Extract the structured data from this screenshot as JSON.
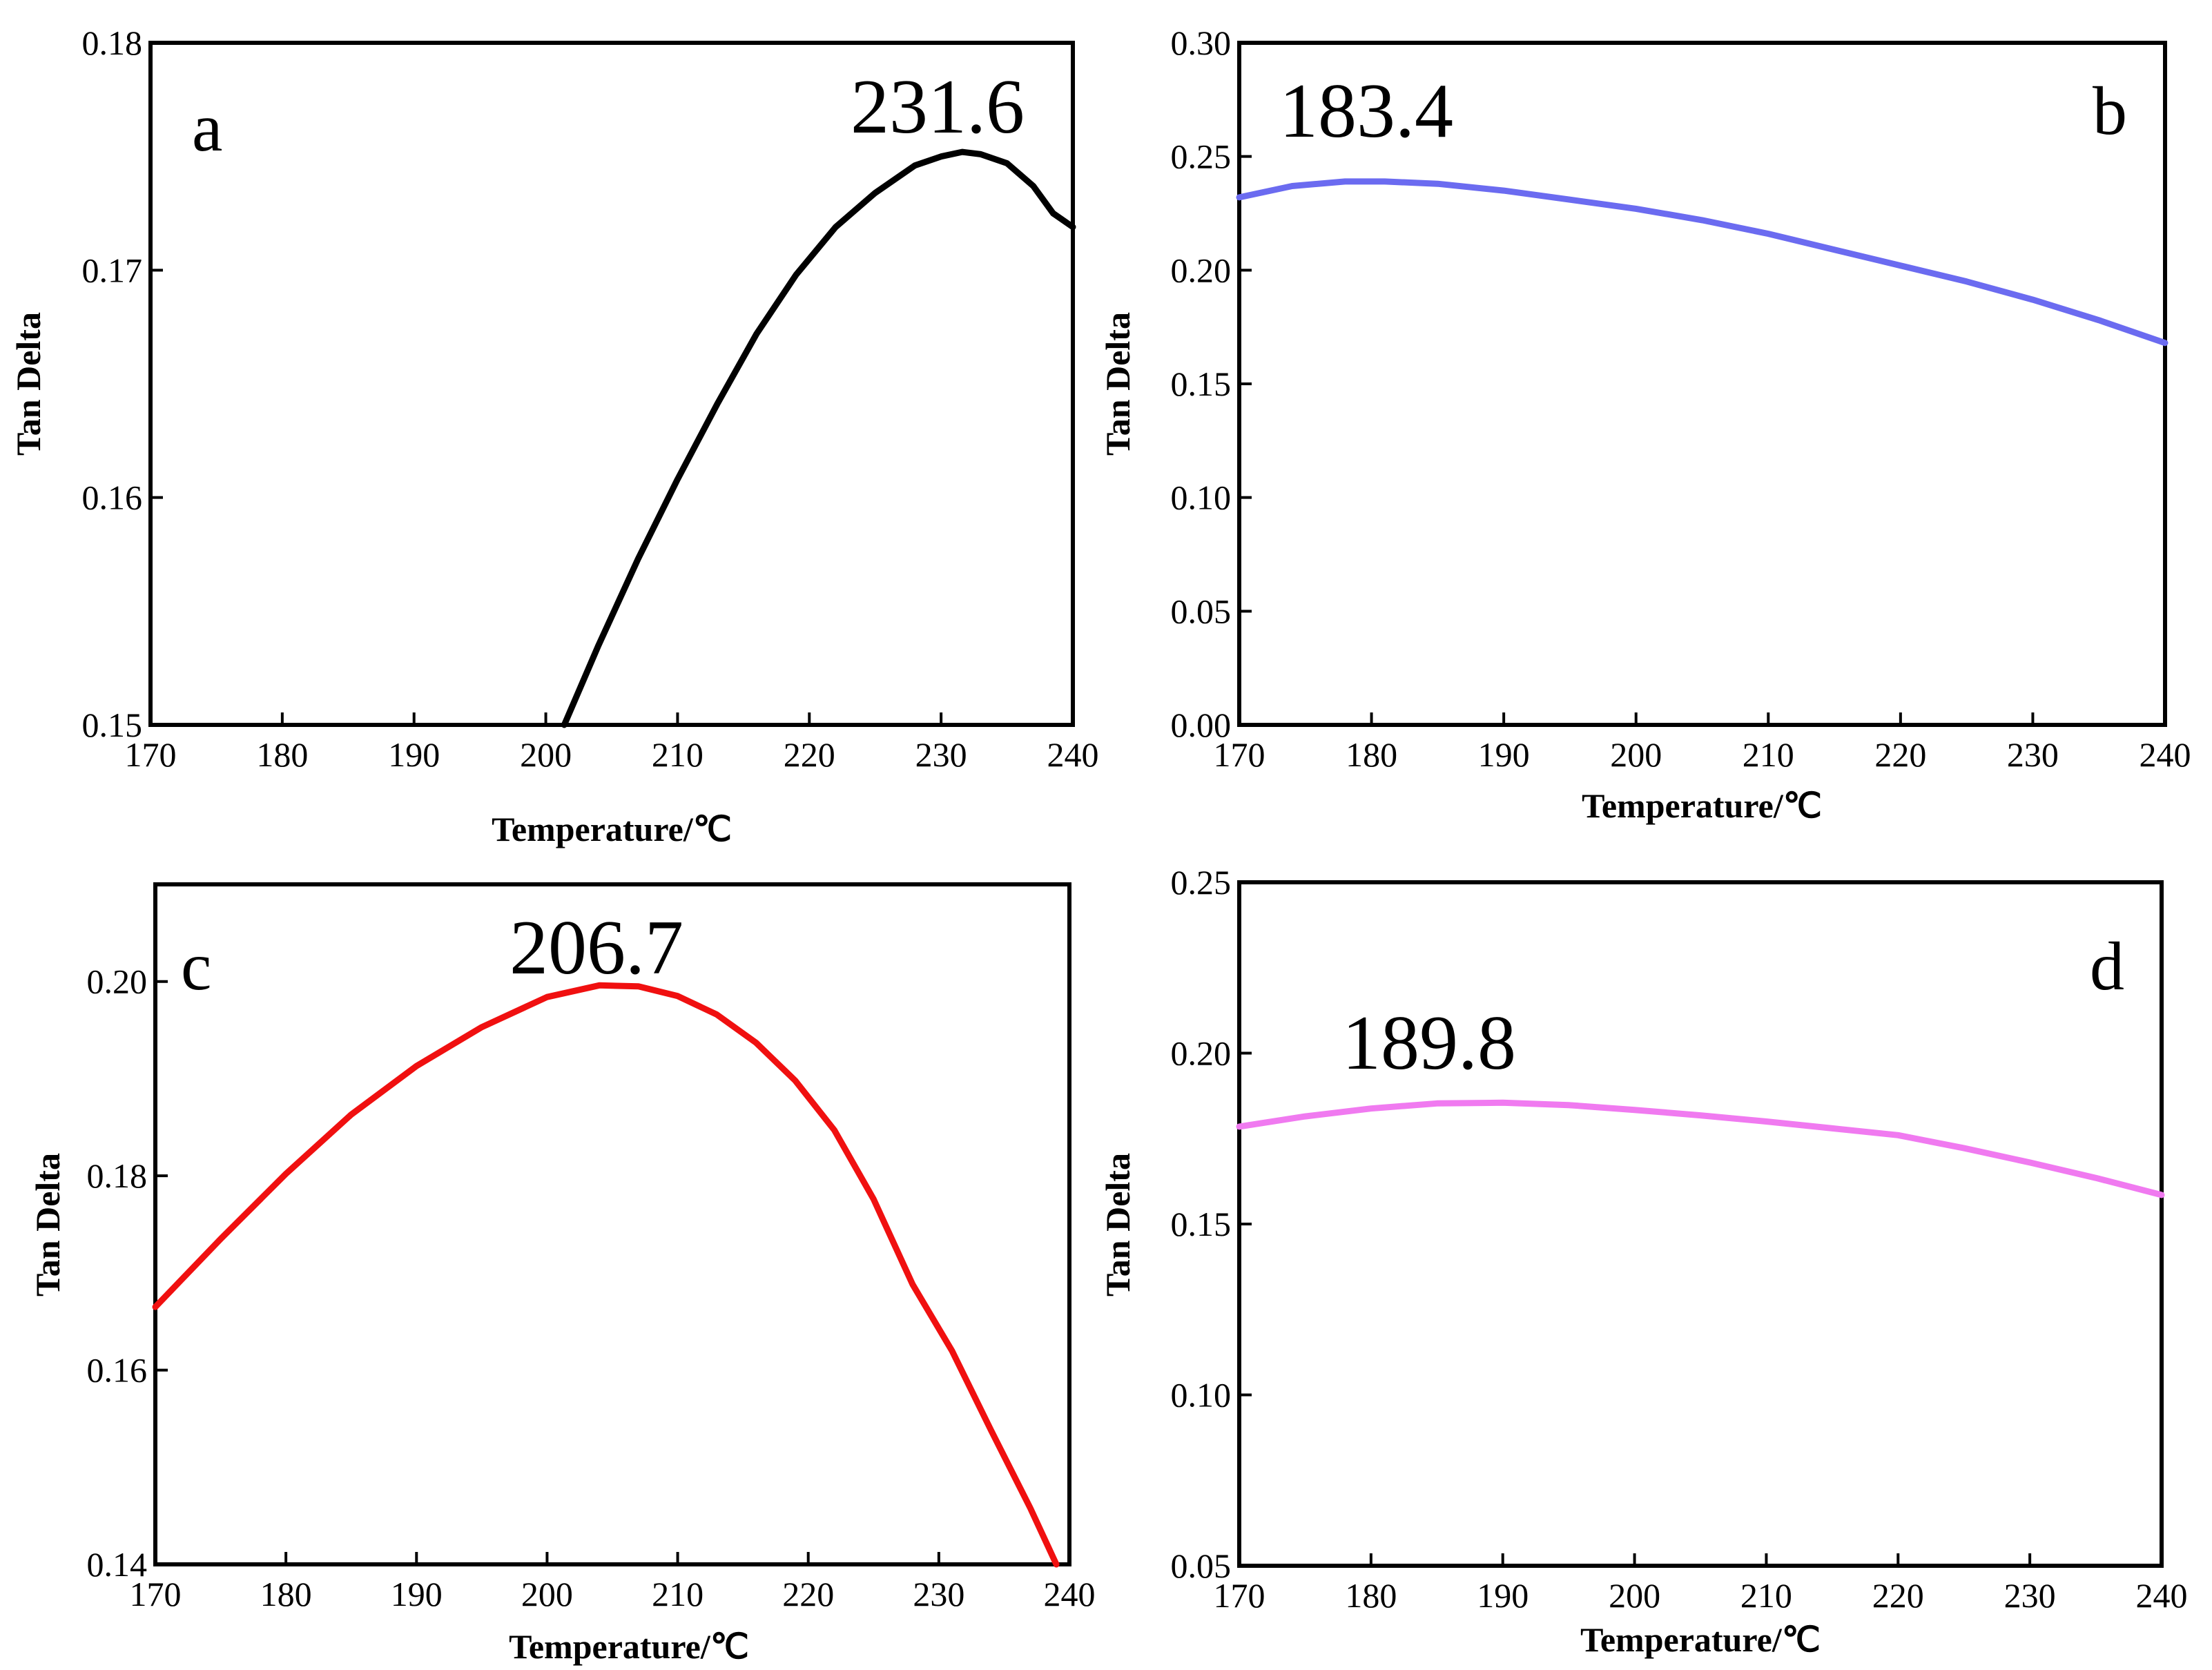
{
  "chart_data": [
    {
      "panel": "a",
      "type": "line",
      "annotation": "231.6",
      "xlabel": "Temperature/℃",
      "ylabel": "Tan Delta",
      "xlim": [
        170,
        240
      ],
      "ylim": [
        0.15,
        0.18
      ],
      "xticks": [
        170,
        180,
        190,
        200,
        210,
        220,
        230,
        240
      ],
      "yticks": [
        0.15,
        0.16,
        0.17,
        0.18
      ],
      "x_tick_labels": [
        "170",
        "180",
        "190",
        "200",
        "210",
        "220",
        "230",
        "240"
      ],
      "y_tick_labels": [
        "0.15",
        "0.16",
        "0.17",
        "0.18"
      ],
      "color": "#000000",
      "series": [
        {
          "name": "a",
          "x": [
            201.4,
            204,
            207,
            210,
            213,
            216,
            219,
            222,
            225,
            228,
            230,
            231.6,
            233,
            235,
            237,
            238.5,
            240
          ],
          "y": [
            0.15,
            0.1535,
            0.1573,
            0.1608,
            0.1641,
            0.1672,
            0.1698,
            0.1719,
            0.1734,
            0.1746,
            0.175,
            0.1752,
            0.1751,
            0.1747,
            0.1737,
            0.1725,
            0.1719
          ]
        }
      ]
    },
    {
      "panel": "b",
      "type": "line",
      "annotation": "183.4",
      "xlabel": "Temperature/℃",
      "ylabel": "Tan Delta",
      "xlim": [
        170,
        240
      ],
      "ylim": [
        0.0,
        0.3
      ],
      "xticks": [
        170,
        180,
        190,
        200,
        210,
        220,
        230,
        240
      ],
      "yticks": [
        0.0,
        0.05,
        0.1,
        0.15,
        0.2,
        0.25,
        0.3
      ],
      "x_tick_labels": [
        "170",
        "180",
        "190",
        "200",
        "210",
        "220",
        "230",
        "240"
      ],
      "y_tick_labels": [
        "0.00",
        "0.05",
        "0.10",
        "0.15",
        "0.20",
        "0.25",
        "0.30"
      ],
      "color": "#6b6bf0",
      "series": [
        {
          "name": "b",
          "x": [
            170,
            174,
            178,
            181,
            185,
            190,
            195,
            200,
            205,
            210,
            215,
            220,
            225,
            230,
            235,
            240
          ],
          "y": [
            0.232,
            0.237,
            0.239,
            0.239,
            0.238,
            0.235,
            0.231,
            0.227,
            0.222,
            0.216,
            0.209,
            0.202,
            0.195,
            0.187,
            0.178,
            0.168
          ]
        }
      ]
    },
    {
      "panel": "c",
      "type": "line",
      "annotation": "206.7",
      "xlabel": "Temperature/℃",
      "ylabel": "Tan Delta",
      "xlim": [
        170,
        240
      ],
      "ylim": [
        0.14,
        0.21
      ],
      "xticks": [
        170,
        180,
        190,
        200,
        210,
        220,
        230,
        240
      ],
      "yticks": [
        0.14,
        0.16,
        0.18,
        0.2
      ],
      "x_tick_labels": [
        "170",
        "180",
        "190",
        "200",
        "210",
        "220",
        "230",
        "240"
      ],
      "y_tick_labels": [
        "0.14",
        "0.16",
        "0.18",
        "0.20"
      ],
      "color": "#f01010",
      "series": [
        {
          "name": "c",
          "x": [
            170,
            175,
            180,
            185,
            190,
            195,
            200,
            204,
            207,
            210,
            213,
            216,
            219,
            222,
            225,
            228,
            231,
            234,
            237,
            239
          ],
          "y": [
            0.1665,
            0.1735,
            0.1802,
            0.1863,
            0.1913,
            0.1953,
            0.1984,
            0.1996,
            0.1995,
            0.1985,
            0.1966,
            0.1937,
            0.1898,
            0.1847,
            0.1776,
            0.1688,
            0.162,
            0.1538,
            0.1458,
            0.14
          ]
        }
      ]
    },
    {
      "panel": "d",
      "type": "line",
      "annotation": "189.8",
      "xlabel": "Temperature/℃",
      "ylabel": "Tan Delta",
      "xlim": [
        170,
        240
      ],
      "ylim": [
        0.05,
        0.25
      ],
      "xticks": [
        170,
        180,
        190,
        200,
        210,
        220,
        230,
        240
      ],
      "yticks": [
        0.05,
        0.1,
        0.15,
        0.2,
        0.25
      ],
      "x_tick_labels": [
        "170",
        "180",
        "190",
        "200",
        "210",
        "220",
        "230",
        "240"
      ],
      "y_tick_labels": [
        "0.05",
        "0.10",
        "0.15",
        "0.20",
        "0.25"
      ],
      "color": "#f07af0",
      "series": [
        {
          "name": "d",
          "x": [
            170,
            175,
            180,
            185,
            190,
            195,
            200,
            205,
            210,
            215,
            220,
            225,
            230,
            235,
            240
          ],
          "y": [
            0.1785,
            0.1815,
            0.1838,
            0.1853,
            0.1855,
            0.1848,
            0.1834,
            0.1818,
            0.18,
            0.178,
            0.176,
            0.1722,
            0.168,
            0.1635,
            0.1585
          ]
        }
      ]
    }
  ]
}
